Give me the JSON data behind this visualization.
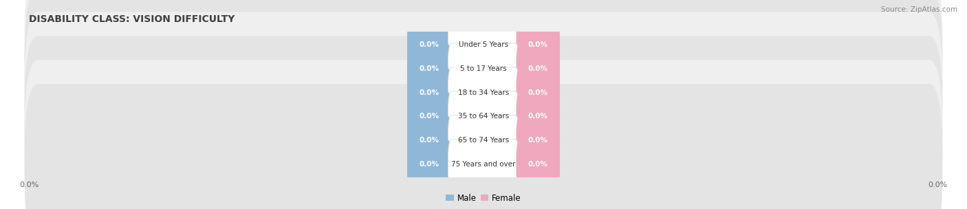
{
  "title": "DISABILITY CLASS: VISION DIFFICULTY",
  "source": "Source: ZipAtlas.com",
  "categories": [
    "Under 5 Years",
    "5 to 17 Years",
    "18 to 34 Years",
    "35 to 64 Years",
    "65 to 74 Years",
    "75 Years and over"
  ],
  "male_values": [
    0.0,
    0.0,
    0.0,
    0.0,
    0.0,
    0.0
  ],
  "female_values": [
    0.0,
    0.0,
    0.0,
    0.0,
    0.0,
    0.0
  ],
  "male_color": "#8fb8d8",
  "female_color": "#f0a8bf",
  "male_label": "Male",
  "female_label": "Female",
  "row_light_color": "#efefef",
  "row_dark_color": "#e4e4e4",
  "fig_bg_color": "#ffffff",
  "title_fontsize": 10,
  "source_fontsize": 7.5,
  "label_fontsize": 7.5,
  "value_fontsize": 7.5,
  "figsize": [
    14.06,
    3.04
  ],
  "dpi": 100,
  "max_val": 100.0
}
